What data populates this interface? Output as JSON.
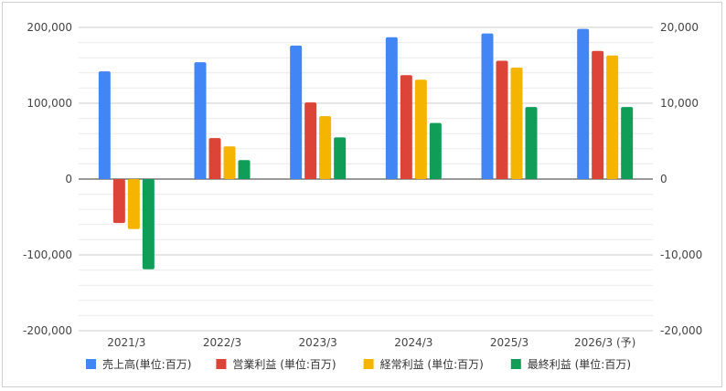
{
  "chart_data": {
    "type": "bar",
    "categories": [
      "2021/3",
      "2022/3",
      "2023/3",
      "2024/3",
      "2025/3",
      "2026/3 (予)"
    ],
    "series": [
      {
        "name": "売上高(単位:百万)",
        "color": "#4285f4",
        "axis": "left",
        "values": [
          142000,
          154000,
          176000,
          187000,
          192000,
          198000
        ]
      },
      {
        "name": "営業利益 (単位:百万)",
        "color": "#db4437",
        "axis": "right",
        "values": [
          -5800,
          5400,
          10100,
          13700,
          15600,
          16900
        ]
      },
      {
        "name": "経常利益 (単位:百万)",
        "color": "#f4b400",
        "axis": "right",
        "values": [
          -6600,
          4300,
          8300,
          13100,
          14700,
          16300
        ]
      },
      {
        "name": "最終利益 (単位:百万)",
        "color": "#0f9d58",
        "axis": "right",
        "values": [
          -11900,
          2500,
          5500,
          7400,
          9500,
          9500
        ]
      }
    ],
    "y_left": {
      "min": -200000,
      "max": 200000,
      "ticks": [
        200000,
        100000,
        0,
        -100000,
        -200000
      ],
      "tick_labels": [
        "200,000",
        "100,000",
        "0",
        "-100,000",
        "-200,000"
      ]
    },
    "y_right": {
      "min": -20000,
      "max": 20000,
      "ticks": [
        20000,
        10000,
        0,
        -10000,
        -20000
      ],
      "tick_labels": [
        "20,000",
        "10,000",
        "0",
        "-10,000",
        "-20,000"
      ]
    },
    "grid": true,
    "minor_grid": true,
    "legend_position": "bottom",
    "title": "",
    "xlabel": "",
    "ylabel": ""
  }
}
